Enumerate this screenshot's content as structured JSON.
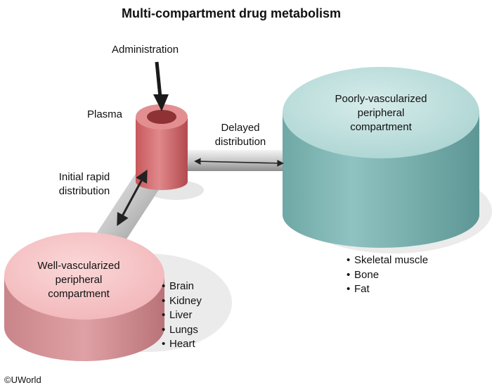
{
  "title": "Multi-compartment drug metabolism",
  "labels": {
    "administration": "Administration",
    "plasma": "Plasma",
    "delayed_distribution": [
      "Delayed",
      "distribution"
    ],
    "initial_rapid_distribution": [
      "Initial rapid",
      "distribution"
    ]
  },
  "compartments": {
    "poorly_vascularized": {
      "name_lines": [
        "Poorly-vascularized",
        "peripheral",
        "compartment"
      ],
      "examples": [
        "Skeletal muscle",
        "Bone",
        "Fat"
      ],
      "color": "#8fc4c2"
    },
    "well_vascularized": {
      "name_lines": [
        "Well-vascularized",
        "peripheral",
        "compartment"
      ],
      "examples": [
        "Brain",
        "Kidney",
        "Liver",
        "Lungs",
        "Heart"
      ],
      "color": "#e8a3a8"
    },
    "plasma_color": "#d9797c"
  },
  "copyright": "©UWorld"
}
